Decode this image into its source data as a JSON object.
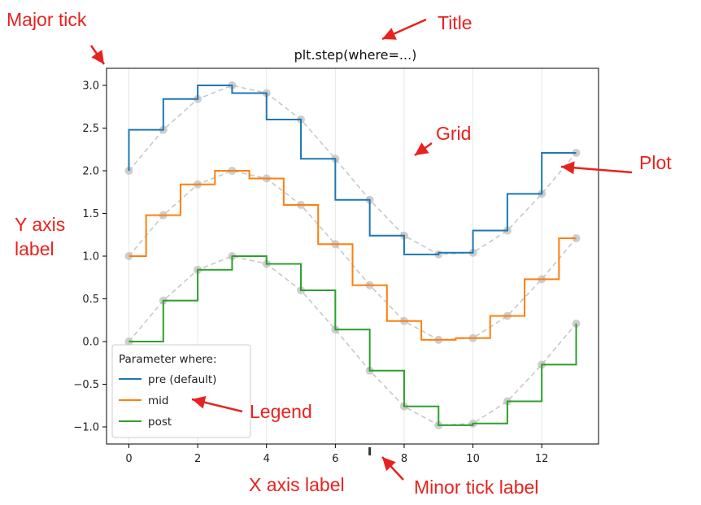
{
  "chart_data": {
    "type": "line",
    "title": "plt.step(where=...)",
    "xlabel": "",
    "ylabel": "",
    "xlim": [
      -0.65,
      13.65
    ],
    "ylim": [
      -1.2,
      3.2
    ],
    "xticks": [
      0,
      2,
      4,
      6,
      8,
      10,
      12
    ],
    "yticks": [
      -1.0,
      -0.5,
      0.0,
      0.5,
      1.0,
      1.5,
      2.0,
      2.5,
      3.0
    ],
    "xtick_labels": [
      "0",
      "2",
      "4",
      "6",
      "8",
      "10",
      "12"
    ],
    "ytick_labels": [
      "−1.0",
      "−0.5",
      "0.0",
      "0.5",
      "1.0",
      "1.5",
      "2.0",
      "2.5",
      "3.0"
    ],
    "grid": "vertical",
    "x": [
      0,
      1,
      2,
      3,
      4,
      5,
      6,
      7,
      8,
      9,
      10,
      11,
      12,
      13
    ],
    "series": [
      {
        "name": "pre (default)",
        "where": "pre",
        "color": "#1f77b4",
        "values": [
          2.0,
          2.48,
          2.84,
          3.0,
          2.91,
          2.6,
          2.14,
          1.66,
          1.24,
          1.02,
          1.04,
          1.3,
          1.73,
          2.21
        ]
      },
      {
        "name": "mid",
        "where": "mid",
        "color": "#ff7f0e",
        "values": [
          1.0,
          1.48,
          1.84,
          2.0,
          1.91,
          1.6,
          1.14,
          0.66,
          0.24,
          0.02,
          0.04,
          0.3,
          0.73,
          1.21
        ]
      },
      {
        "name": "post",
        "where": "post",
        "color": "#2ca02c",
        "values": [
          0.0,
          0.48,
          0.84,
          1.0,
          0.91,
          0.6,
          0.14,
          -0.34,
          -0.76,
          -0.98,
          -0.96,
          -0.7,
          -0.27,
          0.21
        ]
      }
    ],
    "guide_style": {
      "color": "#c8c8c8",
      "marker_color": "#bdbdbd"
    },
    "legend": {
      "title": "Parameter where:",
      "placement": "lower-left"
    },
    "annotations": [
      {
        "label": "Major tick"
      },
      {
        "label": "Title"
      },
      {
        "label": "Grid"
      },
      {
        "label": "Plot"
      },
      {
        "label": "Y axis\nlabel"
      },
      {
        "label": "Legend"
      },
      {
        "label": "X axis label"
      },
      {
        "label": "Minor tick label"
      }
    ],
    "annotation_color": "#e8221e"
  }
}
